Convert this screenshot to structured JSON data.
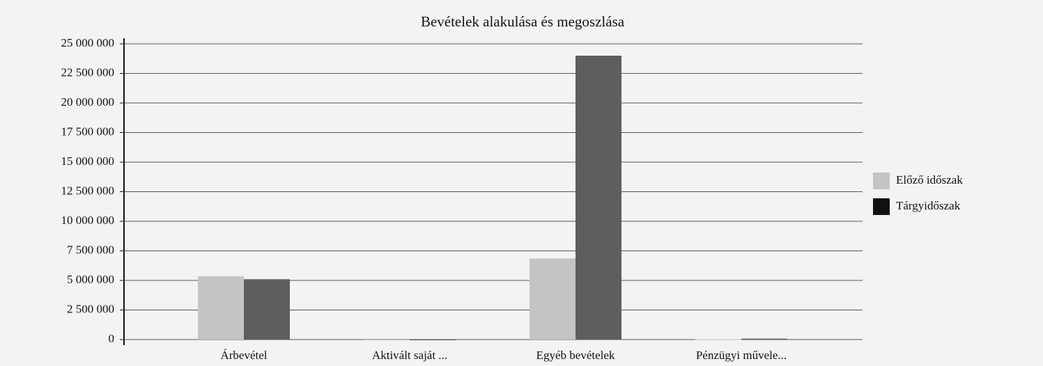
{
  "chart_data": {
    "type": "bar",
    "title": "Bevételek alakulása és megoszlása",
    "categories": [
      "Árbevétel",
      "Aktivált saját ...",
      "Egyéb bevételek",
      "Pénzügyi művele..."
    ],
    "series": [
      {
        "name": "Előző időszak",
        "color": "#c4c4c4",
        "values": [
          5350000,
          0,
          6850000,
          30000
        ]
      },
      {
        "name": "Tárgyidőszak",
        "color": "#5e5e5e",
        "values": [
          5100000,
          0,
          24000000,
          80000
        ]
      }
    ],
    "ylim": [
      0,
      25000000
    ],
    "yticks": [
      0,
      {
        "value": 2500000,
        "label": "2 500 000"
      },
      {
        "value": 5000000,
        "label": "5 000 000"
      },
      {
        "value": 7500000,
        "label": "7 500 000"
      },
      {
        "value": 10000000,
        "label": "10 000 000"
      },
      {
        "value": 12500000,
        "label": "12 500 000"
      },
      {
        "value": 15000000,
        "label": "15 000 000"
      },
      {
        "value": 17500000,
        "label": "17 500 000"
      },
      {
        "value": 20000000,
        "label": "20 000 000"
      },
      {
        "value": 22500000,
        "label": "22 500 000"
      },
      {
        "value": 25000000,
        "label": "25 000 000"
      }
    ],
    "grid": true,
    "legend": "right"
  }
}
